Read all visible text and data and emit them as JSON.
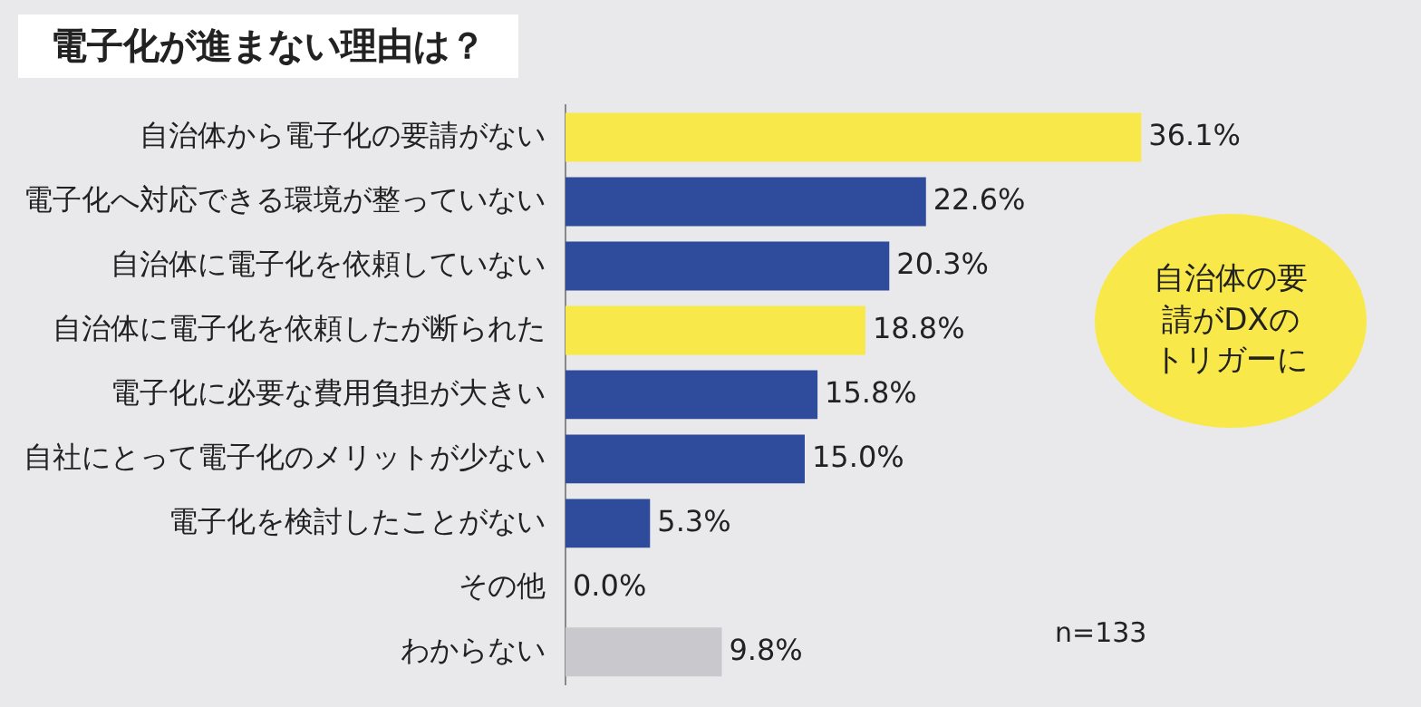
{
  "chart_data": {
    "type": "bar",
    "orientation": "horizontal",
    "title": "電子化が進まない理由は？",
    "categories": [
      "自治体から電子化の要請がない",
      "電子化へ対応できる環境が整っていない",
      "自治体に電子化を依頼していない",
      "自治体に電子化を依頼したが断られた",
      "電子化に必要な費用負担が大きい",
      "自社にとって電子化のメリットが少ない",
      "電子化を検討したことがない",
      "その他",
      "わからない"
    ],
    "values": [
      36.1,
      22.6,
      20.3,
      18.8,
      15.8,
      15.0,
      5.3,
      0.0,
      9.8
    ],
    "value_labels": [
      "36.1%",
      "22.6%",
      "20.3%",
      "18.8%",
      "15.8%",
      "15.0%",
      "5.3%",
      "0.0%",
      "9.8%"
    ],
    "colors": [
      "#f8e84a",
      "#2f4b9c",
      "#2f4b9c",
      "#f8e84a",
      "#2f4b9c",
      "#2f4b9c",
      "#2f4b9c",
      "#2f4b9c",
      "#c9c9cd"
    ],
    "tick_labels": "y",
    "legend": false,
    "annotations": [
      "自治体の要請がDXのトリガーに",
      "n=133"
    ]
  }
}
